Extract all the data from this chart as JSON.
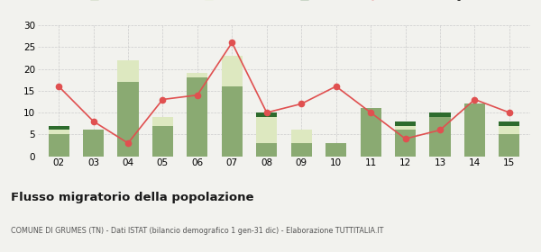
{
  "years": [
    "02",
    "03",
    "04",
    "05",
    "06",
    "07",
    "08",
    "09",
    "10",
    "11",
    "12",
    "13",
    "14",
    "15"
  ],
  "iscritti_altri_comuni": [
    5,
    6,
    17,
    7,
    18,
    16,
    3,
    3,
    3,
    11,
    6,
    9,
    12,
    5
  ],
  "iscritti_estero": [
    1,
    0,
    5,
    2,
    1,
    7,
    6,
    3,
    0,
    0,
    1,
    0,
    0,
    2
  ],
  "iscritti_altri": [
    1,
    0,
    0,
    0,
    0,
    0,
    1,
    0,
    0,
    0,
    1,
    1,
    0,
    1
  ],
  "cancellati": [
    16,
    8,
    3,
    13,
    14,
    26,
    10,
    12,
    16,
    10,
    4,
    6,
    13,
    10
  ],
  "color_altri_comuni": "#8aaa72",
  "color_estero": "#dde8c0",
  "color_altri": "#2d6b2d",
  "color_cancellati": "#e05050",
  "ylim": [
    0,
    30
  ],
  "yticks": [
    0,
    5,
    10,
    15,
    20,
    25,
    30
  ],
  "title": "Flusso migratorio della popolazione",
  "subtitle": "COMUNE DI GRUMES (TN) - Dati ISTAT (bilancio demografico 1 gen-31 dic) - Elaborazione TUTTITALIA.IT",
  "bg_color": "#f2f2ee",
  "grid_color": "#cccccc"
}
